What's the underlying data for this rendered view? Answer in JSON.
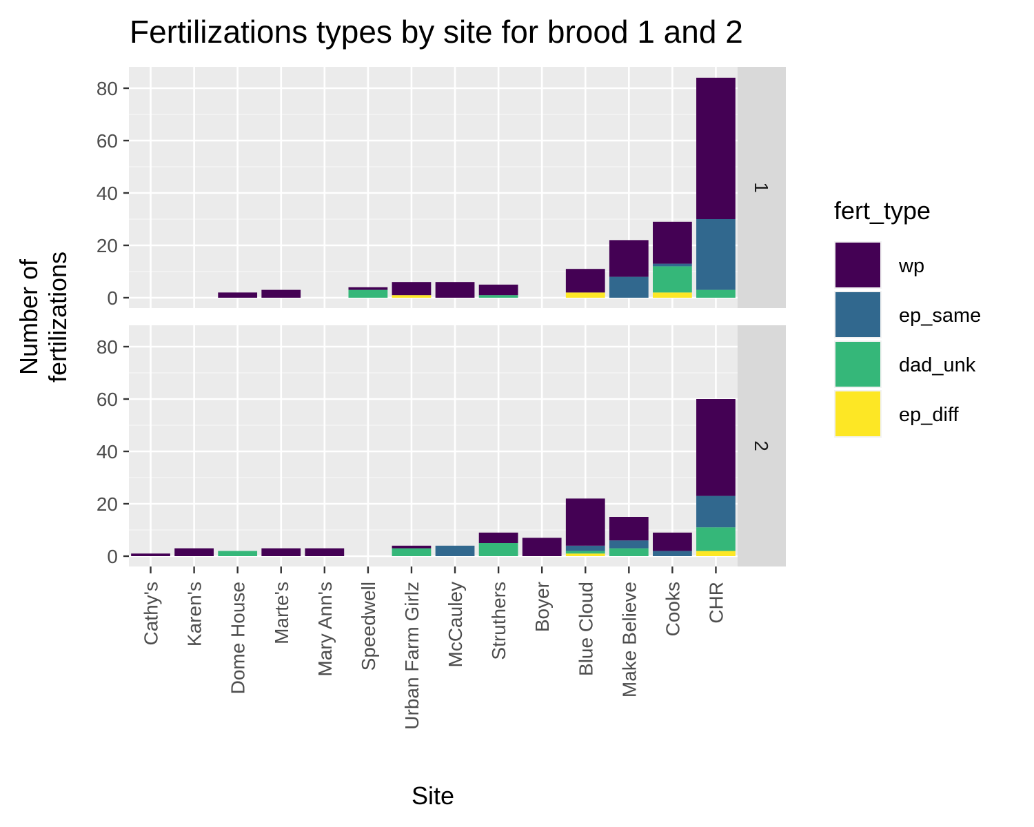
{
  "chart_data": {
    "type": "bar",
    "stacked": true,
    "title": "Fertilizations types by site for brood 1 and 2",
    "xlabel": "Site",
    "ylabel": "Number of\nfertilizations",
    "ylim": [
      0,
      88
    ],
    "yticks": [
      0,
      20,
      40,
      60,
      80
    ],
    "grid": true,
    "legend_position": "right",
    "legend_title": "fert_type",
    "categories": [
      "Cathy's",
      "Karen's",
      "Dome House",
      "Marte's",
      "Mary Ann's",
      "Speedwell",
      "Urban Farm Girlz",
      "McCauley",
      "Struthers",
      "Boyer",
      "Blue Cloud",
      "Make Believe",
      "Cooks",
      "CHR"
    ],
    "series_legend": [
      {
        "name": "wp",
        "color": "#440154"
      },
      {
        "name": "ep_same",
        "color": "#31688E"
      },
      {
        "name": "dad_unk",
        "color": "#35B779"
      },
      {
        "name": "ep_diff",
        "color": "#FDE725"
      }
    ],
    "stack_order": [
      "ep_diff",
      "dad_unk",
      "ep_same",
      "wp"
    ],
    "facets": [
      {
        "label": "1",
        "series": [
          {
            "name": "wp",
            "values": [
              0,
              0,
              2,
              3,
              0,
              1,
              5,
              6,
              4,
              0,
              9,
              14,
              16,
              54
            ]
          },
          {
            "name": "ep_same",
            "values": [
              0,
              0,
              0,
              0,
              0,
              0,
              0,
              0,
              0,
              0,
              0,
              8,
              1,
              27
            ]
          },
          {
            "name": "dad_unk",
            "values": [
              0,
              0,
              0,
              0,
              0,
              3,
              0,
              0,
              1,
              0,
              0,
              0,
              10,
              3
            ]
          },
          {
            "name": "ep_diff",
            "values": [
              0,
              0,
              0,
              0,
              0,
              0,
              1,
              0,
              0,
              0,
              2,
              0,
              2,
              0
            ]
          }
        ]
      },
      {
        "label": "2",
        "series": [
          {
            "name": "wp",
            "values": [
              1,
              3,
              0,
              3,
              3,
              0,
              1,
              0,
              4,
              7,
              18,
              9,
              7,
              37
            ]
          },
          {
            "name": "ep_same",
            "values": [
              0,
              0,
              0,
              0,
              0,
              0,
              0,
              4,
              0,
              0,
              2,
              3,
              2,
              12
            ]
          },
          {
            "name": "dad_unk",
            "values": [
              0,
              0,
              2,
              0,
              0,
              0,
              3,
              0,
              5,
              0,
              1,
              3,
              0,
              9
            ]
          },
          {
            "name": "ep_diff",
            "values": [
              0,
              0,
              0,
              0,
              0,
              0,
              0,
              0,
              0,
              0,
              1,
              0,
              0,
              2
            ]
          }
        ]
      }
    ]
  }
}
